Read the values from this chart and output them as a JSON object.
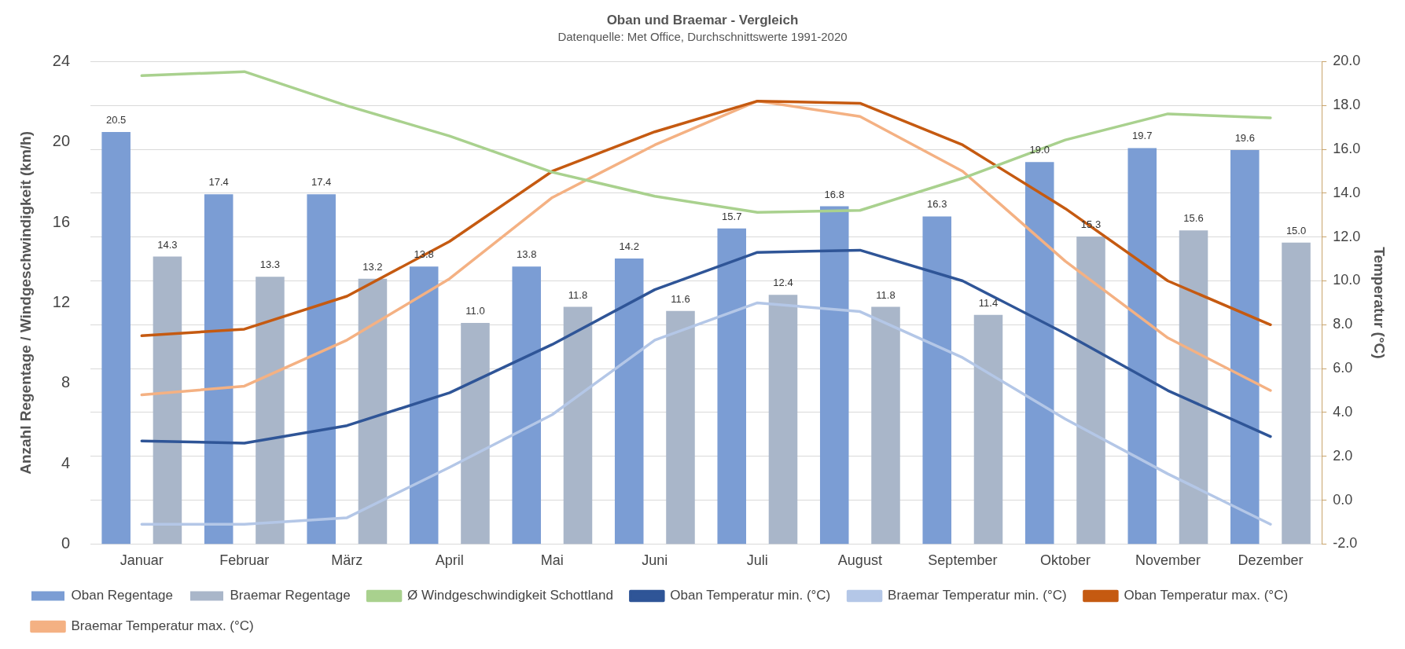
{
  "chart_data": {
    "type": "bar",
    "title": "Oban und Braemar - Vergleich",
    "subtitle": "Datenquelle: Met Office, Durchschnittswerte 1991-2020",
    "ylabel": "Anzahl Regentage / Windgeschwindigkeit (km/h)",
    "y2label": "Temperatur (°C)",
    "categories": [
      "Januar",
      "Februar",
      "März",
      "April",
      "Mai",
      "Juni",
      "Juli",
      "August",
      "September",
      "Oktober",
      "November",
      "Dezember"
    ],
    "series": [
      {
        "name": "Oban Regentage",
        "color": "#7b9dd4",
        "values": [
          20.5,
          17.4,
          17.4,
          13.8,
          13.8,
          14.2,
          15.7,
          16.8,
          16.3,
          19.0,
          19.7,
          19.6
        ],
        "value_labels": [
          "20.5",
          "17.4",
          "17.4",
          "13.8",
          "13.8",
          "14.2",
          "15.7",
          "16.8",
          "16.3",
          "19.0",
          "19.7",
          "19.6"
        ]
      },
      {
        "name": "Braemar Regentage",
        "color": "#a9b6c9",
        "values": [
          14.3,
          13.3,
          13.2,
          11.0,
          11.8,
          11.6,
          12.4,
          11.8,
          11.4,
          15.3,
          15.6,
          15.0
        ],
        "value_labels": [
          "14.3",
          "13.3",
          "13.2",
          "11.0",
          "11.8",
          "11.6",
          "12.4",
          "11.8",
          "11.4",
          "15.3",
          "15.6",
          "15.0"
        ]
      },
      {
        "name": "Ø Windgeschwindigkeit Schottland",
        "type": "line",
        "color": "#a9d18e",
        "values": [
          23.3,
          23.5,
          21.8,
          20.3,
          18.5,
          17.3,
          16.5,
          16.6,
          18.2,
          20.1,
          21.4,
          21.2
        ]
      },
      {
        "name": "Oban Temperatur min. (°C)",
        "type": "line",
        "axis": "y2",
        "color": "#2f5597",
        "values": [
          2.7,
          2.6,
          3.4,
          4.9,
          7.1,
          9.6,
          11.3,
          11.4,
          10.0,
          7.6,
          5.0,
          2.9
        ]
      },
      {
        "name": "Braemar Temperatur min. (°C)",
        "type": "line",
        "axis": "y2",
        "color": "#b4c7e7",
        "values": [
          -1.1,
          -1.1,
          -0.8,
          1.5,
          3.9,
          7.3,
          9.0,
          8.6,
          6.5,
          3.7,
          1.2,
          -1.1
        ]
      },
      {
        "name": "Oban Temperatur max. (°C)",
        "type": "line",
        "axis": "y2",
        "color": "#c55a11",
        "values": [
          7.5,
          7.8,
          9.3,
          11.8,
          15.0,
          16.8,
          18.2,
          18.1,
          16.2,
          13.3,
          10.0,
          8.0
        ]
      },
      {
        "name": "Braemar Temperatur max. (°C)",
        "type": "line",
        "axis": "y2",
        "color": "#f4b183",
        "values": [
          4.8,
          5.2,
          7.3,
          10.1,
          13.8,
          16.2,
          18.2,
          17.5,
          15.0,
          10.9,
          7.4,
          5.0
        ]
      }
    ],
    "ylim": [
      0,
      24
    ],
    "yticks": [
      0,
      4,
      8,
      12,
      16,
      20,
      24
    ],
    "y2lim": [
      -2,
      20
    ],
    "y2ticks": [
      {
        "value": -2,
        "label": "-2.0"
      },
      {
        "value": 0,
        "label": "0.0"
      },
      {
        "value": 2,
        "label": "2.0"
      },
      {
        "value": 4,
        "label": "4.0"
      },
      {
        "value": 6,
        "label": "6.0"
      },
      {
        "value": 8,
        "label": "8.0"
      },
      {
        "value": 10,
        "label": "10.0"
      },
      {
        "value": 12,
        "label": "12.0"
      },
      {
        "value": 14,
        "label": "14.0"
      },
      {
        "value": 16,
        "label": "16.0"
      },
      {
        "value": 18,
        "label": "18.0"
      },
      {
        "value": 20,
        "label": "20.0"
      }
    ],
    "grid": true,
    "legend": "bottom",
    "marker": "none",
    "line_style": "solid"
  }
}
